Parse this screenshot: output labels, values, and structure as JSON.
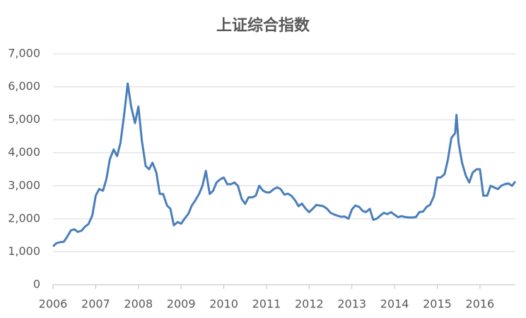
{
  "chart_data": {
    "type": "line",
    "title": "上证综合指数",
    "series": [
      {
        "color": "#4a7ebb",
        "x": [
          2006,
          2006.08,
          2006.17,
          2006.25,
          2006.33,
          2006.42,
          2006.5,
          2006.58,
          2006.67,
          2006.75,
          2006.83,
          2006.92,
          2007,
          2007.08,
          2007.17,
          2007.25,
          2007.33,
          2007.42,
          2007.5,
          2007.58,
          2007.67,
          2007.75,
          2007.83,
          2007.92,
          2008,
          2008.08,
          2008.17,
          2008.25,
          2008.33,
          2008.42,
          2008.5,
          2008.58,
          2008.67,
          2008.75,
          2008.83,
          2008.92,
          2009,
          2009.08,
          2009.17,
          2009.25,
          2009.33,
          2009.42,
          2009.5,
          2009.58,
          2009.67,
          2009.75,
          2009.83,
          2009.92,
          2010,
          2010.08,
          2010.17,
          2010.25,
          2010.33,
          2010.42,
          2010.5,
          2010.58,
          2010.67,
          2010.75,
          2010.83,
          2010.92,
          2011,
          2011.08,
          2011.17,
          2011.25,
          2011.33,
          2011.42,
          2011.5,
          2011.58,
          2011.67,
          2011.75,
          2011.83,
          2011.92,
          2012,
          2012.08,
          2012.17,
          2012.25,
          2012.33,
          2012.42,
          2012.5,
          2012.58,
          2012.67,
          2012.75,
          2012.83,
          2012.92,
          2013,
          2013.08,
          2013.17,
          2013.25,
          2013.33,
          2013.42,
          2013.5,
          2013.58,
          2013.67,
          2013.75,
          2013.83,
          2013.92,
          2014,
          2014.08,
          2014.17,
          2014.25,
          2014.33,
          2014.42,
          2014.5,
          2014.58,
          2014.67,
          2014.75,
          2014.83,
          2014.92,
          2015,
          2015.08,
          2015.17,
          2015.25,
          2015.33,
          2015.42,
          2015.45,
          2015.5,
          2015.58,
          2015.67,
          2015.75,
          2015.83,
          2015.92,
          2016,
          2016.08,
          2016.17,
          2016.25,
          2016.33,
          2016.42,
          2016.5,
          2016.58,
          2016.67,
          2016.75,
          2016.83
        ],
        "values": [
          1160,
          1260,
          1290,
          1300,
          1450,
          1650,
          1680,
          1600,
          1640,
          1760,
          1840,
          2100,
          2700,
          2900,
          2850,
          3200,
          3800,
          4100,
          3900,
          4300,
          5200,
          6100,
          5400,
          4900,
          5400,
          4380,
          3600,
          3500,
          3700,
          3400,
          2750,
          2750,
          2400,
          2300,
          1800,
          1900,
          1850,
          2000,
          2150,
          2400,
          2550,
          2750,
          3000,
          3450,
          2750,
          2850,
          3100,
          3200,
          3250,
          3050,
          3050,
          3100,
          3000,
          2600,
          2450,
          2650,
          2650,
          2700,
          3000,
          2850,
          2800,
          2800,
          2900,
          2950,
          2900,
          2730,
          2760,
          2700,
          2560,
          2380,
          2460,
          2300,
          2200,
          2300,
          2420,
          2400,
          2380,
          2300,
          2180,
          2130,
          2090,
          2060,
          2070,
          2000,
          2280,
          2400,
          2360,
          2240,
          2200,
          2300,
          1970,
          2000,
          2100,
          2180,
          2140,
          2200,
          2120,
          2050,
          2080,
          2050,
          2040,
          2040,
          2050,
          2200,
          2220,
          2360,
          2420,
          2680,
          3250,
          3250,
          3350,
          3800,
          4450,
          4600,
          5150,
          4300,
          3700,
          3300,
          3100,
          3400,
          3500,
          3500,
          2700,
          2700,
          3000,
          2950,
          2900,
          3000,
          3050,
          3070,
          3000,
          3130
        ]
      }
    ],
    "xlim": [
      2006,
      2016.83
    ],
    "xticks": [
      2006,
      2007,
      2008,
      2009,
      2010,
      2011,
      2012,
      2013,
      2014,
      2015,
      2016
    ],
    "ylim": [
      0,
      7000
    ],
    "yticks": [
      0,
      {
        "value": 1000,
        "label": "1,000"
      },
      {
        "value": 2000,
        "label": "2,000"
      },
      {
        "value": 3000,
        "label": "3,000"
      },
      {
        "value": 4000,
        "label": "4,000"
      },
      {
        "value": 5000,
        "label": "5,000"
      },
      {
        "value": 6000,
        "label": "6,000"
      },
      {
        "value": 7000,
        "label": "7,000"
      }
    ],
    "grid": true
  }
}
